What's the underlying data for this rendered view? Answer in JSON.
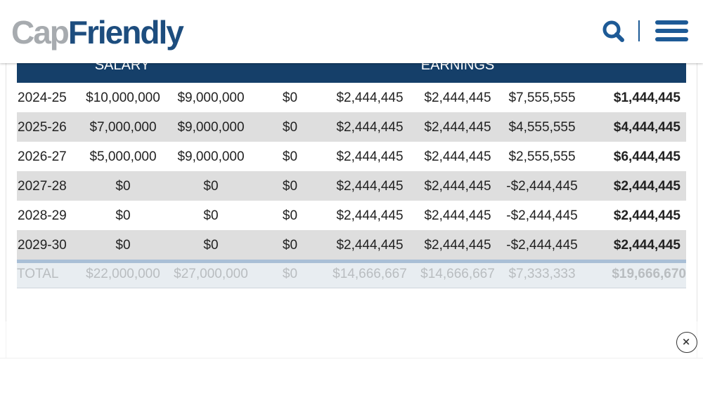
{
  "logo": {
    "part1": "Cap",
    "part2": "Friendly"
  },
  "table": {
    "header": [
      "SALARY",
      "EARNINGS"
    ],
    "rows": [
      [
        "2024-25",
        "$10,000,000",
        "$9,000,000",
        "$0",
        "$2,444,445",
        "$2,444,445",
        "$7,555,555",
        "$1,444,445"
      ],
      [
        "2025-26",
        "$7,000,000",
        "$9,000,000",
        "$0",
        "$2,444,445",
        "$2,444,445",
        "$4,555,555",
        "$4,444,445"
      ],
      [
        "2026-27",
        "$5,000,000",
        "$9,000,000",
        "$0",
        "$2,444,445",
        "$2,444,445",
        "$2,555,555",
        "$6,444,445"
      ],
      [
        "2027-28",
        "$0",
        "$0",
        "$0",
        "$2,444,445",
        "$2,444,445",
        "-$2,444,445",
        "$2,444,445"
      ],
      [
        "2028-29",
        "$0",
        "$0",
        "$0",
        "$2,444,445",
        "$2,444,445",
        "-$2,444,445",
        "$2,444,445"
      ],
      [
        "2029-30",
        "$0",
        "$0",
        "$0",
        "$2,444,445",
        "$2,444,445",
        "-$2,444,445",
        "$2,444,445"
      ]
    ],
    "total": [
      "TOTAL",
      "$22,000,000",
      "$27,000,000",
      "$0",
      "$14,666,667",
      "$14,666,667",
      "$7,333,333",
      "$19,666,670"
    ]
  }
}
